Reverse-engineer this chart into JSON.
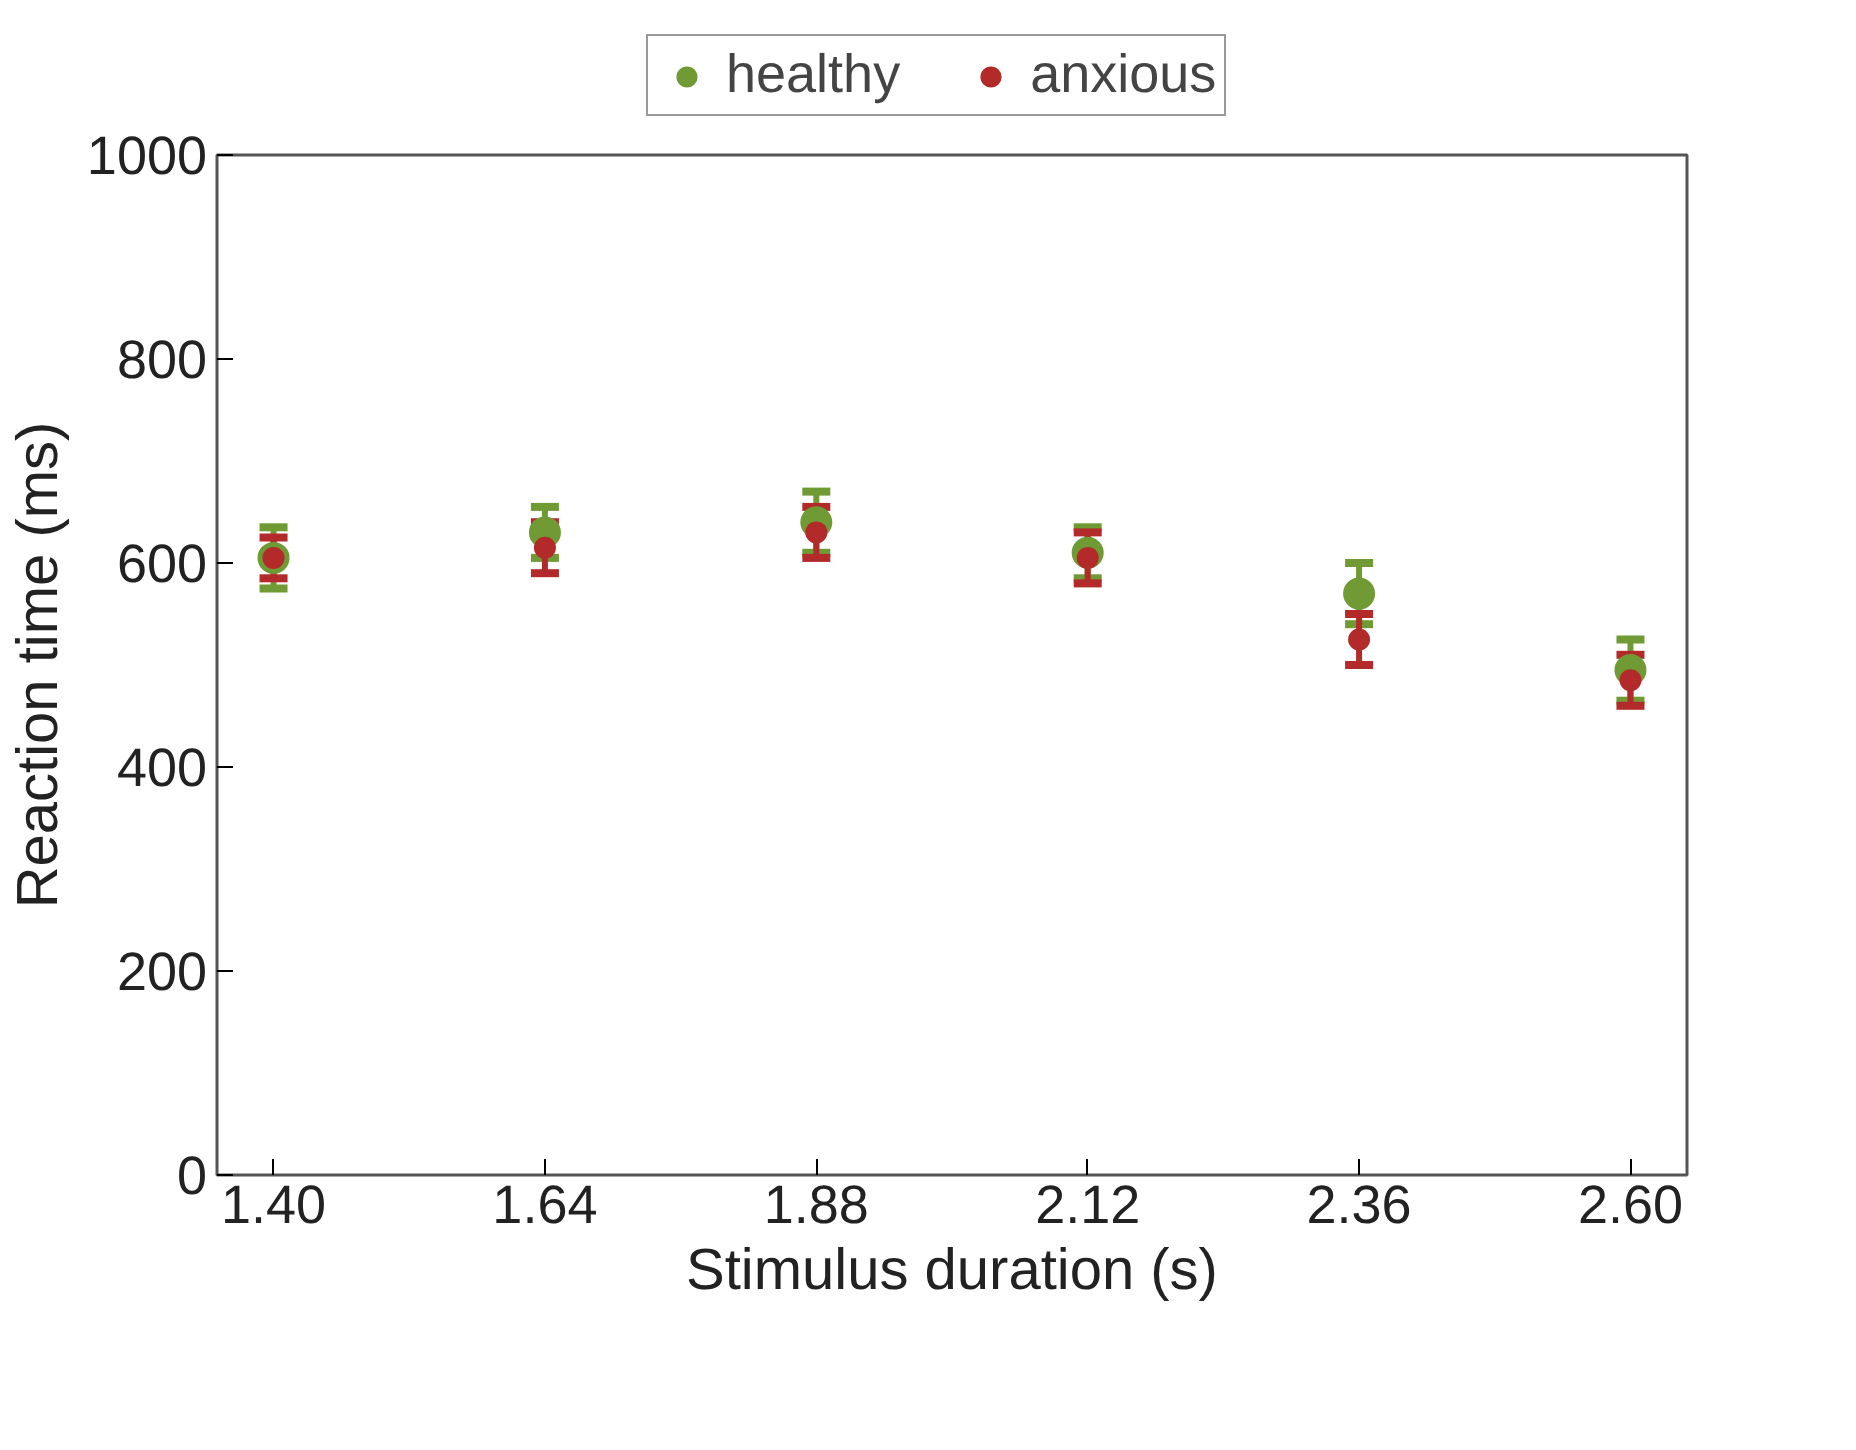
{
  "chart_data": {
    "type": "scatter",
    "xlabel": "Stimulus duration (s)",
    "ylabel": "Reaction time (ms)",
    "x": [
      1.4,
      1.64,
      1.88,
      2.12,
      2.36,
      2.6
    ],
    "xlim": [
      1.35,
      2.65
    ],
    "xticks": [
      {
        "value": 1.4,
        "label": "1.40"
      },
      {
        "value": 1.64,
        "label": "1.64"
      },
      {
        "value": 1.88,
        "label": "1.88"
      },
      {
        "value": 2.12,
        "label": "2.12"
      },
      {
        "value": 2.36,
        "label": "2.36"
      },
      {
        "value": 2.6,
        "label": "2.60"
      }
    ],
    "ylim": [
      0,
      1000
    ],
    "yticks": [
      0,
      200,
      400,
      600,
      800,
      1000
    ],
    "series": [
      {
        "name": "healthy",
        "color": "#6f9a34",
        "values": [
          605,
          630,
          640,
          610,
          570,
          495
        ],
        "errors": [
          30,
          25,
          30,
          25,
          30,
          30
        ]
      },
      {
        "name": "anxious",
        "color": "#b22a2a",
        "values": [
          605,
          615,
          630,
          605,
          525,
          485
        ],
        "errors": [
          20,
          25,
          25,
          25,
          25,
          25
        ]
      }
    ],
    "marker": "circle",
    "grid": false,
    "legend": "top"
  }
}
